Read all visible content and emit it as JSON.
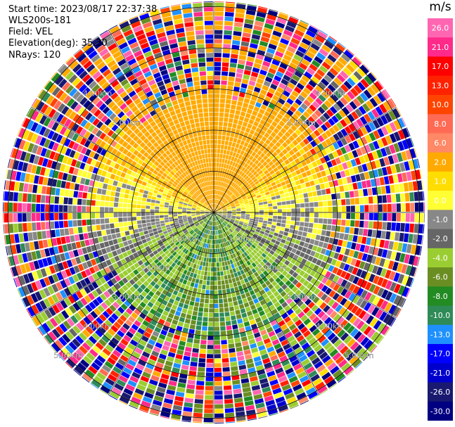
{
  "header": {
    "start_time": "Start time: 2023/08/17 22:37:38",
    "station": "WLS200s-181",
    "field": "Field: VEL",
    "elevation": "Elevation(deg): 35.30",
    "nrays": "NRays: 120"
  },
  "colorbar": {
    "unit": "m/s",
    "ticks": [
      "26.0",
      "21.0",
      "17.0",
      "13.0",
      "10.0",
      "8.0",
      "6.0",
      "2.0",
      "1.0",
      "0.0",
      "-1.0",
      "-2.0",
      "-4.0",
      "-6.0",
      "-8.0",
      "-10.0",
      "-13.0",
      "-17.0",
      "-21.0",
      "-26.0",
      "-30.0"
    ],
    "colors": [
      "#ff66b2",
      "#ff2a8a",
      "#ff0000",
      "#ff2200",
      "#ff4400",
      "#ff6a55",
      "#ff8866",
      "#ffaa00",
      "#ffdd00",
      "#ffff33",
      "#888888",
      "#666666",
      "#9acd32",
      "#6b8e23",
      "#228b22",
      "#2e8b57",
      "#1e90ff",
      "#0000ff",
      "#0000cd",
      "#191970",
      "#000080"
    ]
  },
  "chart_data": {
    "type": "heatmap",
    "projection": "polar PPI",
    "field": "VEL",
    "units": "m/s",
    "nrays": 120,
    "elevation_deg": 35.3,
    "range_ring_labels": [
      "1.00km",
      "2.00km",
      "3.00km",
      "4.00km",
      "5.00km"
    ],
    "ring_ranges_km": [
      1,
      2,
      3,
      4,
      5
    ],
    "ring_label_left": [
      "1.00km",
      "2.00km",
      "3.00km",
      "4.00km",
      "5.00km"
    ],
    "ring_label_right": [
      "1.00km",
      "2.00km",
      "3.00km",
      "4.00km",
      "5.00km"
    ],
    "ring_label_upper_left": [
      "3.00km",
      "4.00km"
    ],
    "ring_label_upper_right": [
      "3.00km",
      "4.00km"
    ],
    "spokes_deg": [
      0,
      30,
      60,
      90,
      120,
      150,
      180,
      210,
      240,
      270,
      300,
      330
    ],
    "velocity_pattern": "Near range (<~2.5 km): positive (yellow/orange, 1 to 6 m/s) toward north, negative (green/blue, -2 to -8 m/s) toward south, grey near zero to east/west; far range (>~3 km): noise speckle across full color scale.",
    "colorscale_bounds": [
      30,
      26,
      21,
      17,
      13,
      10,
      8,
      6,
      2,
      1,
      0,
      -1,
      -2,
      -4,
      -6,
      -8,
      -10,
      -13,
      -17,
      -21,
      -26,
      -30
    ],
    "colorscale_colors": [
      "#ff66b2",
      "#ff2a8a",
      "#ff0000",
      "#ff2200",
      "#ff4400",
      "#ff6a55",
      "#ff8866",
      "#ffaa00",
      "#ffdd00",
      "#ffff33",
      "#888888",
      "#666666",
      "#9acd32",
      "#6b8e23",
      "#228b22",
      "#2e8b57",
      "#1e90ff",
      "#0000ff",
      "#0000cd",
      "#191970",
      "#000080"
    ]
  }
}
